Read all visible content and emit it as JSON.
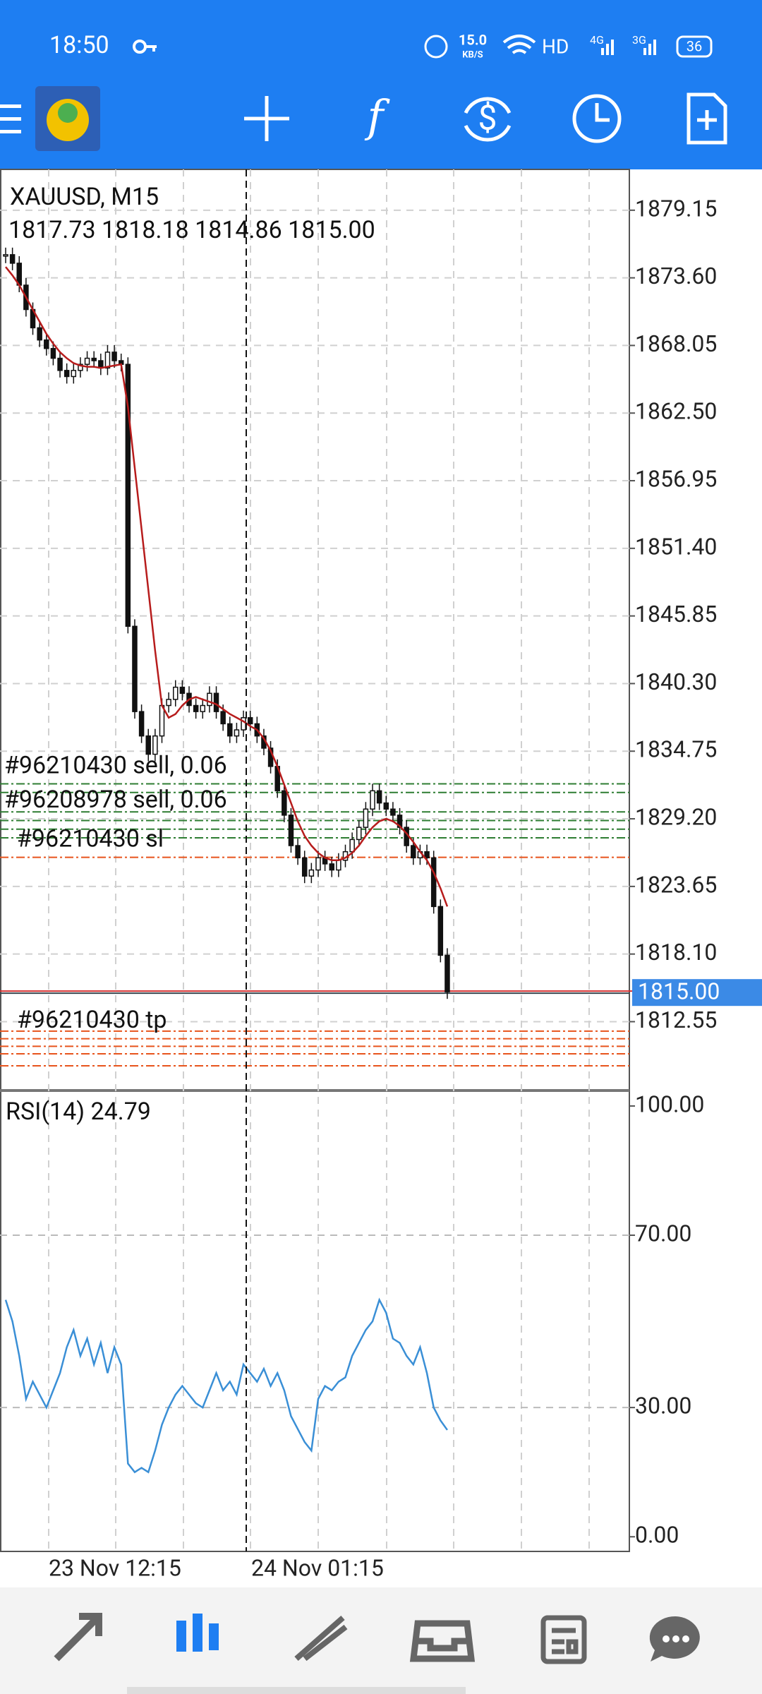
{
  "status_bar": {
    "time": "18:50",
    "speed": "15.0",
    "speed_unit": "KB/S",
    "network": "HD",
    "net1": "4G",
    "net2": "3G",
    "battery": "36"
  },
  "toolbar": {
    "indicator_icon": "f"
  },
  "chart": {
    "symbol": "XAUUSD, M15",
    "ohlc": "1817.73 1818.18 1814.86 1815.00",
    "ylim": [
      1806.9,
      1882.5
    ],
    "yticks": [
      1879.15,
      {
        "value": 1873.6,
        "label": "1873.60"
      },
      1868.05,
      {
        "value": 1862.5,
        "label": "1862.50"
      },
      1856.95,
      {
        "value": 1851.4,
        "label": "1851.40"
      },
      1845.85,
      {
        "value": 1840.3,
        "label": "1840.30"
      },
      1834.75,
      {
        "value": 1829.2,
        "label": "1829.20"
      },
      1823.65,
      {
        "value": 1818.1,
        "label": "1818.10"
      },
      1812.55
    ],
    "current_price": {
      "value": 1815,
      "label": "1815.00"
    },
    "close": [
      1875.5,
      1874.8,
      1873,
      1871,
      1869.5,
      1868.5,
      1867.8,
      1867,
      1866,
      1865.5,
      1866,
      1866.5,
      1867,
      1866.8,
      1866.2,
      1867.5,
      1866.8,
      1866.5,
      1845,
      1838,
      1836,
      1834.5,
      1836,
      1838.5,
      1839,
      1840,
      1839.5,
      1838.5,
      1838,
      1838.5,
      1839.5,
      1838,
      1837,
      1836,
      1836.5,
      1837.5,
      1837,
      1836,
      1835,
      1833.5,
      1831.5,
      1829.5,
      1827,
      1826,
      1824.5,
      1825,
      1826,
      1825.5,
      1825,
      1825.8,
      1826.5,
      1827.5,
      1828.5,
      1830,
      1831.5,
      1830.5,
      1830,
      1829.5,
      1828.5,
      1827,
      1826,
      1826.5,
      1826,
      1822,
      1818,
      1815
    ],
    "ma": [
      1874.5,
      1873.8,
      1873,
      1872,
      1871,
      1870,
      1869,
      1868.2,
      1867.5,
      1867,
      1866.6,
      1866.4,
      1866.3,
      1866.3,
      1866.2,
      1866.3,
      1866.4,
      1866.5,
      1863,
      1858,
      1853,
      1848,
      1843,
      1838.5,
      1837.5,
      1837.8,
      1838.5,
      1839,
      1839.2,
      1839,
      1838.8,
      1838.6,
      1838.2,
      1837.8,
      1837.5,
      1837.2,
      1836.8,
      1836.5,
      1835.8,
      1834.8,
      1833.5,
      1832,
      1830.5,
      1829,
      1827.8,
      1827,
      1826.4,
      1826,
      1825.8,
      1825.8,
      1826,
      1826.4,
      1827,
      1827.8,
      1828.5,
      1829,
      1829.2,
      1829,
      1828.6,
      1828,
      1827.3,
      1826.5,
      1825.8,
      1824.8,
      1823.5,
      1822
    ],
    "orders": [
      {
        "label": "#96210430 sell, 0.06",
        "price": 1832.07
      },
      {
        "label": "#96208978 sell, 0.06",
        "price": 1831.36
      }
    ],
    "sell_levels": [
      1829.77,
      1829.06,
      1828.35,
      1827.64
    ],
    "sl": {
      "label": "#96210430 sl",
      "price": 1826.04
    },
    "tp": {
      "label": "#96210430 tp",
      "price": 1811.77
    },
    "tp_levels": [
      1811.15,
      1810.53,
      1809.91,
      1808.93
    ],
    "xlabels": [
      "23 Nov 12:15",
      "24 Nov 01:15"
    ]
  },
  "rsi": {
    "label": "RSI(14) 24.79",
    "ylim": [
      -3.4,
      103.1
    ],
    "yticks": [
      {
        "value": 100,
        "label": "100.00"
      },
      {
        "value": 70,
        "label": "70.00"
      },
      {
        "value": 30,
        "label": "30.00"
      },
      {
        "value": 0,
        "label": "0.00"
      }
    ],
    "values": [
      55,
      50,
      42,
      32,
      36,
      33,
      30,
      34,
      38,
      44,
      48,
      42,
      46,
      40,
      45,
      38,
      44,
      40,
      17,
      15,
      16,
      15,
      20,
      26,
      30,
      33,
      35,
      33,
      31,
      30,
      34,
      38,
      34,
      36,
      33,
      40,
      38,
      36,
      39,
      35,
      38,
      34,
      28,
      25,
      22,
      20,
      32,
      35,
      34,
      36,
      37,
      42,
      45,
      48,
      50,
      55,
      52,
      46,
      45,
      42,
      40,
      44,
      38,
      30,
      27,
      24.79
    ]
  }
}
